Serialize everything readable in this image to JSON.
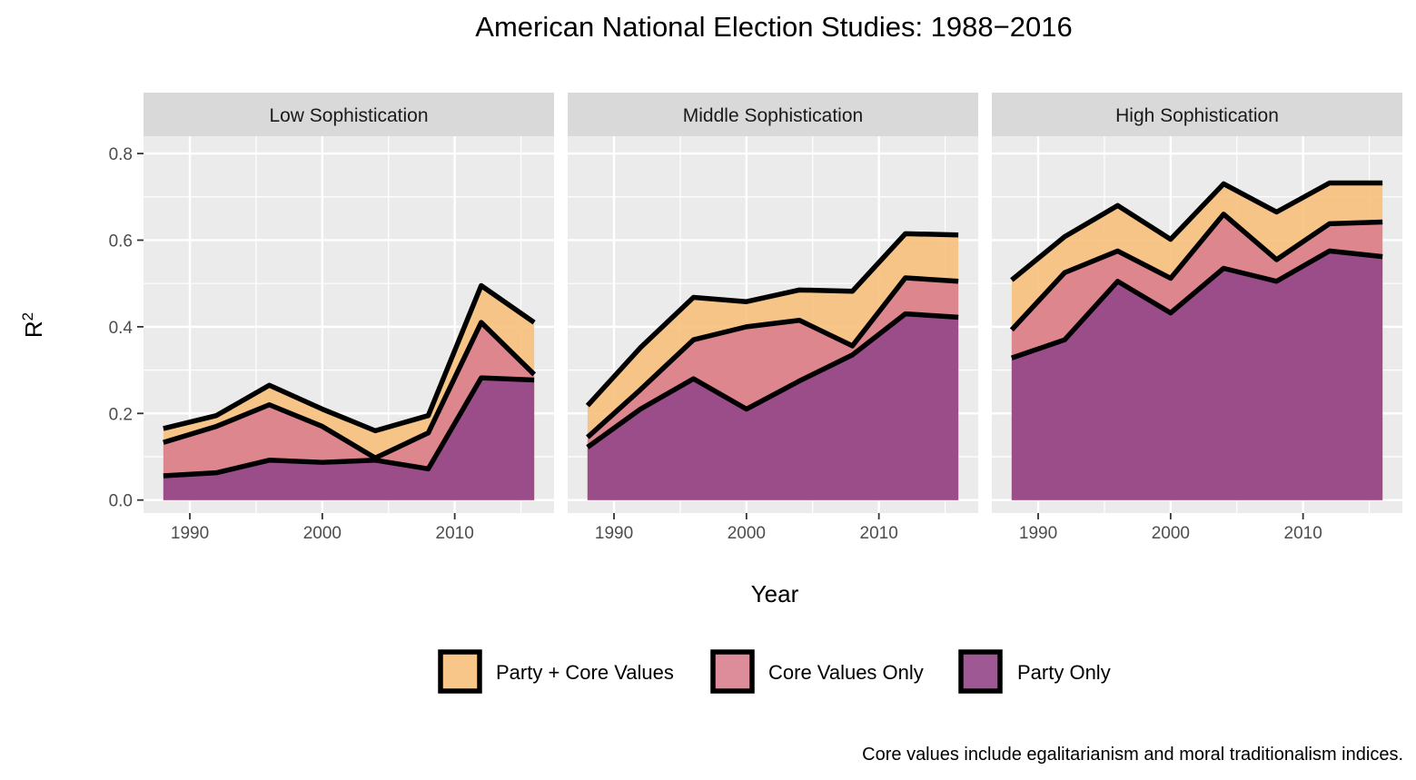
{
  "chart_data": {
    "type": "area",
    "title": "American National Election Studies: 1988−2016",
    "xlabel": "Year",
    "ylabel": "R",
    "ylabel_superscript": "2",
    "caption": "Core values include egalitarianism and moral traditionalism indices.",
    "xlim": [
      1986.5,
      2017.5
    ],
    "ylim": [
      -0.03,
      0.84
    ],
    "x_ticks": [
      1990,
      2000,
      2010
    ],
    "x_tick_labels": [
      "1990",
      "2000",
      "2010"
    ],
    "y_ticks": [
      0.0,
      0.2,
      0.4,
      0.6,
      0.8
    ],
    "y_tick_labels": [
      "0.0",
      "0.2",
      "0.4",
      "0.6",
      "0.8"
    ],
    "grid": true,
    "legend_position": "bottom",
    "legend": [
      {
        "key": "party_core",
        "label": "Party + Core Values",
        "color": "#F8C07C"
      },
      {
        "key": "core_only",
        "label": "Core Values Only",
        "color": "#D9808E"
      },
      {
        "key": "party_only",
        "label": "Party Only",
        "color": "#93478A"
      }
    ],
    "x": [
      1988,
      1992,
      1996,
      2000,
      2004,
      2008,
      2012,
      2016
    ],
    "panels": [
      {
        "label": "Low Sophistication",
        "series": [
          {
            "name": "Party + Core Values",
            "values": [
              0.165,
              0.195,
              0.265,
              0.21,
              0.16,
              0.195,
              0.495,
              0.41
            ]
          },
          {
            "name": "Core Values Only",
            "values": [
              0.133,
              0.17,
              0.22,
              0.17,
              0.097,
              0.155,
              0.41,
              0.29
            ]
          },
          {
            "name": "Party Only",
            "values": [
              0.056,
              0.063,
              0.092,
              0.087,
              0.092,
              0.072,
              0.282,
              0.277
            ]
          }
        ]
      },
      {
        "label": "Middle Sophistication",
        "series": [
          {
            "name": "Party + Core Values",
            "values": [
              0.218,
              0.352,
              0.468,
              0.458,
              0.485,
              0.482,
              0.615,
              0.612
            ]
          },
          {
            "name": "Core Values Only",
            "values": [
              0.145,
              0.255,
              0.37,
              0.4,
              0.415,
              0.356,
              0.513,
              0.505
            ]
          },
          {
            "name": "Party Only",
            "values": [
              0.122,
              0.21,
              0.28,
              0.21,
              0.275,
              0.335,
              0.43,
              0.422
            ]
          }
        ]
      },
      {
        "label": "High Sophistication",
        "series": [
          {
            "name": "Party + Core Values",
            "values": [
              0.508,
              0.608,
              0.68,
              0.602,
              0.73,
              0.665,
              0.732,
              0.732
            ]
          },
          {
            "name": "Core Values Only",
            "values": [
              0.393,
              0.525,
              0.575,
              0.512,
              0.66,
              0.555,
              0.638,
              0.642
            ]
          },
          {
            "name": "Party Only",
            "values": [
              0.328,
              0.37,
              0.505,
              0.432,
              0.535,
              0.505,
              0.575,
              0.562
            ]
          }
        ]
      }
    ]
  }
}
